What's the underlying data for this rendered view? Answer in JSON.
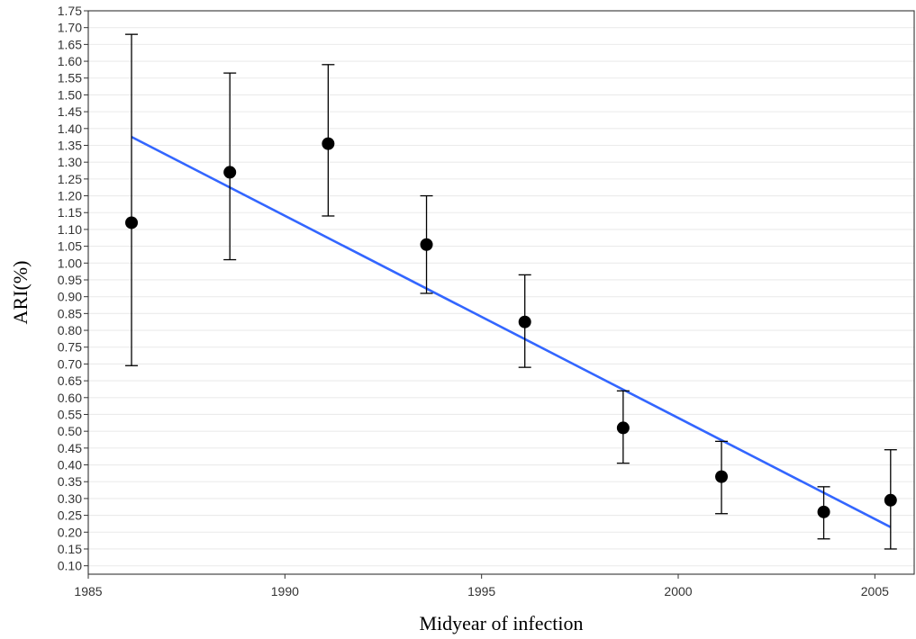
{
  "chart_data": {
    "type": "scatter",
    "title": "",
    "xlabel": "Midyear of infection",
    "ylabel": "ARI(%)",
    "xlim": [
      1985,
      2006
    ],
    "ylim": [
      0.075,
      1.75
    ],
    "x_ticks": [
      "1985",
      "1990",
      "1995",
      "2000",
      "2005"
    ],
    "y_ticks": [
      "0.10",
      "0.15",
      "0.20",
      "0.25",
      "0.30",
      "0.35",
      "0.40",
      "0.45",
      "0.50",
      "0.55",
      "0.60",
      "0.65",
      "0.70",
      "0.75",
      "0.80",
      "0.85",
      "0.90",
      "0.95",
      "1.00",
      "1.05",
      "1.10",
      "1.15",
      "1.20",
      "1.25",
      "1.30",
      "1.35",
      "1.40",
      "1.45",
      "1.50",
      "1.55",
      "1.60",
      "1.65",
      "1.70",
      "1.75"
    ],
    "grid": "horizontal",
    "points": [
      {
        "x": 1986.1,
        "y": 1.12,
        "lower": 0.695,
        "upper": 1.68
      },
      {
        "x": 1988.6,
        "y": 1.27,
        "lower": 1.01,
        "upper": 1.565
      },
      {
        "x": 1991.1,
        "y": 1.355,
        "lower": 1.14,
        "upper": 1.59
      },
      {
        "x": 1993.6,
        "y": 1.055,
        "lower": 0.91,
        "upper": 1.2
      },
      {
        "x": 1996.1,
        "y": 0.825,
        "lower": 0.69,
        "upper": 0.965
      },
      {
        "x": 1998.6,
        "y": 0.51,
        "lower": 0.405,
        "upper": 0.62
      },
      {
        "x": 2001.1,
        "y": 0.365,
        "lower": 0.255,
        "upper": 0.47
      },
      {
        "x": 2003.7,
        "y": 0.26,
        "lower": 0.18,
        "upper": 0.335
      },
      {
        "x": 2005.4,
        "y": 0.295,
        "lower": 0.15,
        "upper": 0.445
      }
    ],
    "trend_line": {
      "x": [
        1986.1,
        2005.4
      ],
      "y": [
        1.375,
        0.215
      ]
    },
    "colors": {
      "points": "#000000",
      "trend": "#3366ff",
      "grid": "#ebebeb",
      "axis": "#333333"
    }
  }
}
